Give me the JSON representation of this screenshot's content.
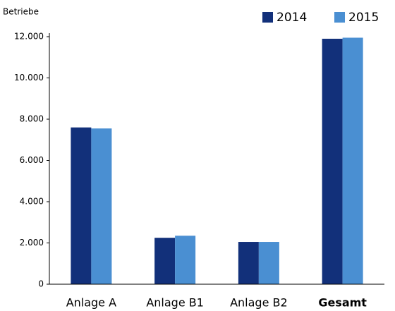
{
  "chart_data": {
    "type": "bar",
    "ylabel": "Betriebe",
    "categories": [
      "Anlage A",
      "Anlage B1",
      "Anlage B2",
      "Gesamt"
    ],
    "series": [
      {
        "name": "2014",
        "color": "#12307a",
        "values": [
          7600,
          2250,
          2050,
          11900
        ]
      },
      {
        "name": "2015",
        "color": "#4a8fd2",
        "values": [
          7550,
          2350,
          2050,
          11950
        ]
      }
    ],
    "ylim": [
      0,
      12000
    ],
    "yticks": [
      0,
      {
        "value": 2000,
        "label": "2.000"
      },
      {
        "value": 4000,
        "label": "4.000"
      },
      {
        "value": 6000,
        "label": "6.000"
      },
      {
        "value": 8000,
        "label": "8.000"
      },
      {
        "value": 10000,
        "label": "10.000"
      },
      {
        "value": 12000,
        "label": "12.000"
      }
    ],
    "legend": "top-right",
    "grid": false
  }
}
